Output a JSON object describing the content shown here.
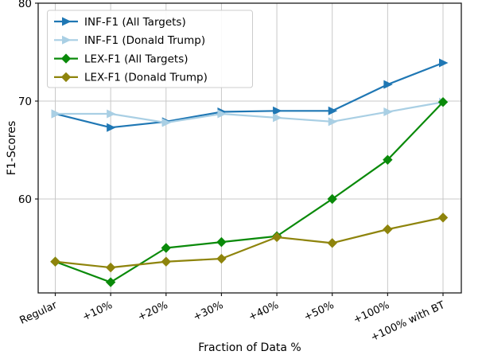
{
  "chart_data": {
    "type": "line",
    "title": "",
    "xlabel": "Fraction of Data %",
    "ylabel": "F1-Scores",
    "categories": [
      "Regular",
      "+10%",
      "+20%",
      "+30%",
      "+40%",
      "+50%",
      "+100%",
      "+100% with BT"
    ],
    "series": [
      {
        "name": "INF-F1 (All Targets)",
        "marker": "triangle-right",
        "color": "#1f77b4",
        "values": [
          68.7,
          67.3,
          67.9,
          68.9,
          69.0,
          69.0,
          71.7,
          73.9
        ]
      },
      {
        "name": "INF-F1 (Donald Trump)",
        "marker": "triangle-right",
        "color": "#a9cfe4",
        "values": [
          68.7,
          68.7,
          67.8,
          68.7,
          68.3,
          67.9,
          68.9,
          69.9
        ]
      },
      {
        "name": "LEX-F1 (All Targets)",
        "marker": "diamond",
        "color": "#0a8a0a",
        "values": [
          53.6,
          51.5,
          55.0,
          55.6,
          56.2,
          60.0,
          64.0,
          69.9
        ]
      },
      {
        "name": "LEX-F1 (Donald Trump)",
        "marker": "diamond",
        "color": "#8e840c",
        "values": [
          53.6,
          53.0,
          53.6,
          53.9,
          56.1,
          55.5,
          56.9,
          58.1
        ]
      }
    ],
    "yticks": [
      60,
      70,
      80
    ],
    "ylim": [
      50.4,
      80.0
    ],
    "grid": true,
    "legend_position": "upper left"
  },
  "colors": {
    "grid": "#c8c8c8",
    "spine": "#1a1a1a",
    "tick_text": "#000000",
    "legend_border": "#cccccc",
    "legend_bg": "#ffffff"
  }
}
